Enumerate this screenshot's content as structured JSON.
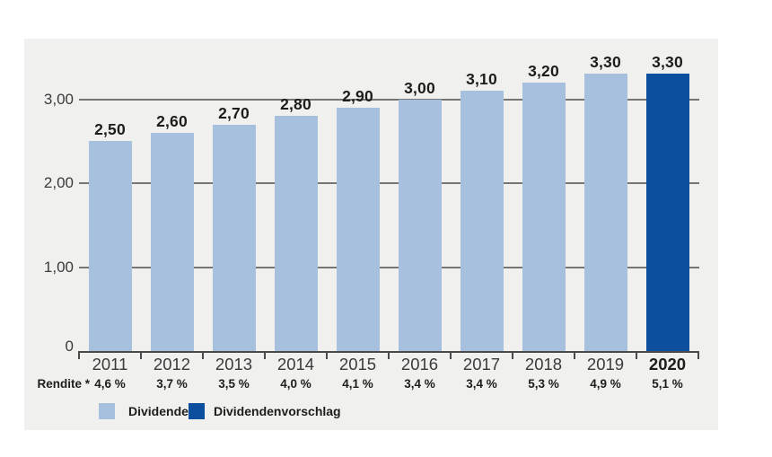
{
  "chart_data": {
    "type": "bar",
    "title": "",
    "xlabel": "",
    "ylabel": "",
    "categories": [
      "2011",
      "2012",
      "2013",
      "2014",
      "2015",
      "2016",
      "2017",
      "2018",
      "2019",
      "2020"
    ],
    "values": [
      2.5,
      2.6,
      2.7,
      2.8,
      2.9,
      3.0,
      3.1,
      3.2,
      3.3,
      3.3
    ],
    "value_labels": [
      "2,50",
      "2,60",
      "2,70",
      "2,80",
      "2,90",
      "3,00",
      "3,10",
      "3,20",
      "3,30",
      "3,30"
    ],
    "bar_series": [
      "Dividende",
      "Dividende",
      "Dividende",
      "Dividende",
      "Dividende",
      "Dividende",
      "Dividende",
      "Dividende",
      "Dividende",
      "Dividendenvorschlag"
    ],
    "emphasized_category": "2020",
    "y_ticks": [
      {
        "value": 0,
        "label": "0"
      },
      {
        "value": 1,
        "label": "1,00"
      },
      {
        "value": 2,
        "label": "2,00"
      },
      {
        "value": 3,
        "label": "3,00"
      }
    ],
    "ylim": [
      0,
      3.72
    ],
    "grid": true,
    "rendite": {
      "label": "Rendite *",
      "values": [
        "4,6 %",
        "3,7 %",
        "3,5 %",
        "4,0 %",
        "4,1 %",
        "3,4 %",
        "3,4 %",
        "5,3 %",
        "4,9 %",
        "5,1 %"
      ]
    },
    "legend": {
      "position": "bottom-left",
      "items": [
        {
          "label": "Dividende",
          "color": "#a6c0dd"
        },
        {
          "label": "Dividendenvorschlag",
          "color": "#0b4f9e"
        }
      ]
    },
    "colors": {
      "dividende": "#a6c0dd",
      "dividendenvorschlag": "#0b4f9e",
      "panel_background": "#f0f0ef",
      "page_background": "#ffffff",
      "gridline": "#757575",
      "axis": "#4a4a4a",
      "label_text": "#3a3a3a",
      "value_text": "#1d1d1b"
    }
  }
}
